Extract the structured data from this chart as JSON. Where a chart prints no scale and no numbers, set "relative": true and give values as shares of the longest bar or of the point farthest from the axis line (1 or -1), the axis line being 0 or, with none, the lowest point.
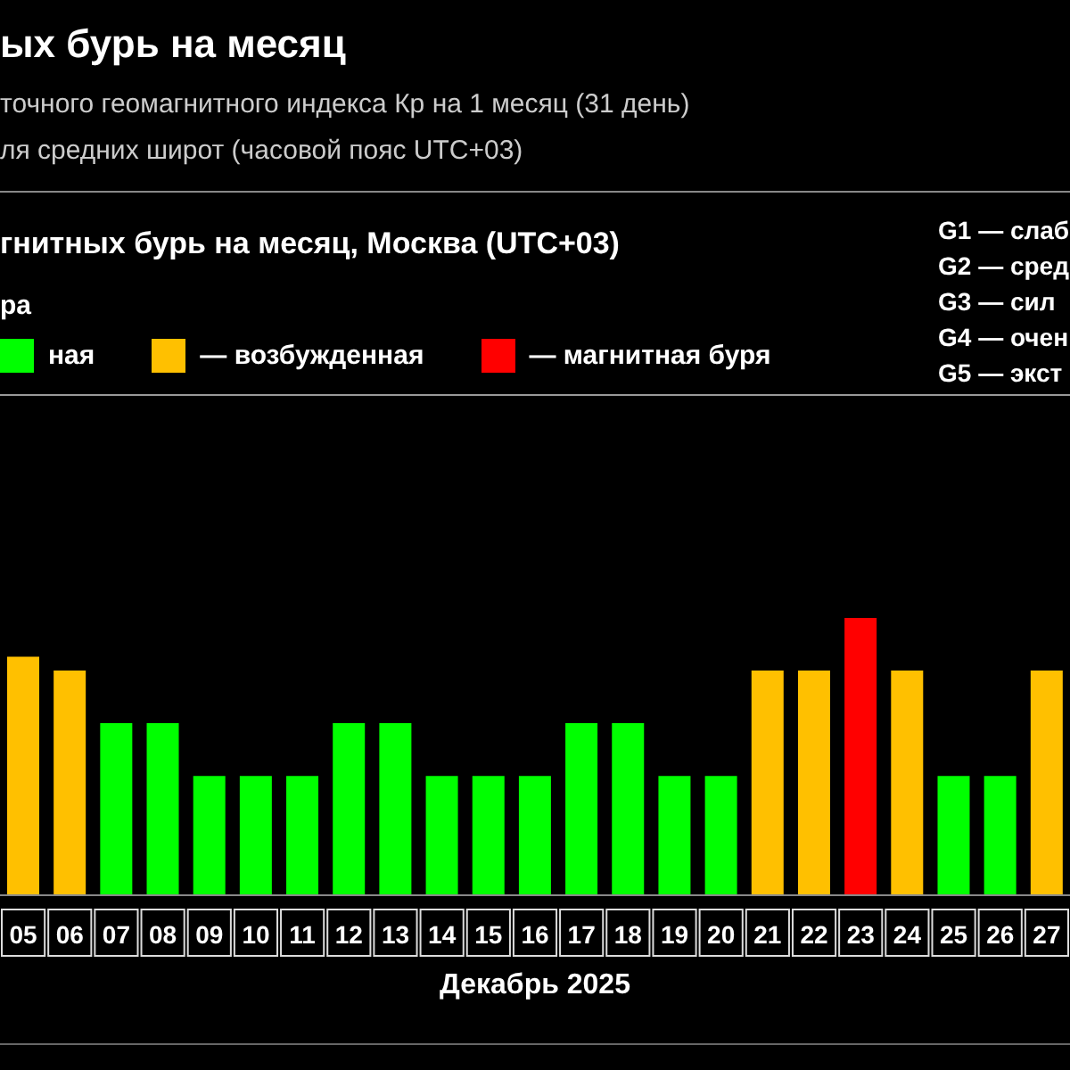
{
  "chart_data": {
    "type": "bar",
    "title": "ых бурь на месяц",
    "subtitle": "точного геомагнитного индекса Кр на 1 месяц (31 день)",
    "annotations": [
      "ля средних широт (часовой пояс UTC+03)",
      "гнитных бурь на месяц, Москва (UTC+03)",
      "G1 — слаб",
      "G2 — сред",
      "G3 — сил",
      "G4 — очен",
      "G5 — экст"
    ],
    "xlabel": "Декабрь 2025",
    "legend_title": "ра",
    "legend": "top left",
    "relative": true,
    "stacked": true,
    "categories": [
      "05",
      "06",
      "07",
      "08",
      "09",
      "10",
      "11",
      "12",
      "13",
      "14",
      "15",
      "16",
      "17",
      "18",
      "19",
      "20",
      "21",
      "22",
      "23",
      "24",
      "25",
      "26",
      "27"
    ],
    "series": [
      {
        "name": "ная",
        "color": "#00ff00",
        "values": [
          null,
          null,
          0.62,
          0.62,
          0.43,
          0.43,
          0.43,
          0.62,
          0.62,
          0.43,
          0.43,
          0.43,
          0.62,
          0.62,
          0.43,
          0.43,
          null,
          null,
          null,
          null,
          0.43,
          0.43,
          null
        ]
      },
      {
        "name": "— возбужденная",
        "color": "#ffc000",
        "values": [
          0.86,
          0.81,
          null,
          null,
          null,
          null,
          null,
          null,
          null,
          null,
          null,
          null,
          null,
          null,
          null,
          null,
          0.81,
          0.81,
          null,
          0.81,
          null,
          null,
          0.81
        ]
      },
      {
        "name": "— магнитная буря",
        "color": "#ff0000",
        "values": [
          null,
          null,
          null,
          null,
          null,
          null,
          null,
          null,
          null,
          null,
          null,
          null,
          null,
          null,
          null,
          null,
          null,
          null,
          1,
          null,
          null,
          null,
          null
        ]
      }
    ]
  }
}
